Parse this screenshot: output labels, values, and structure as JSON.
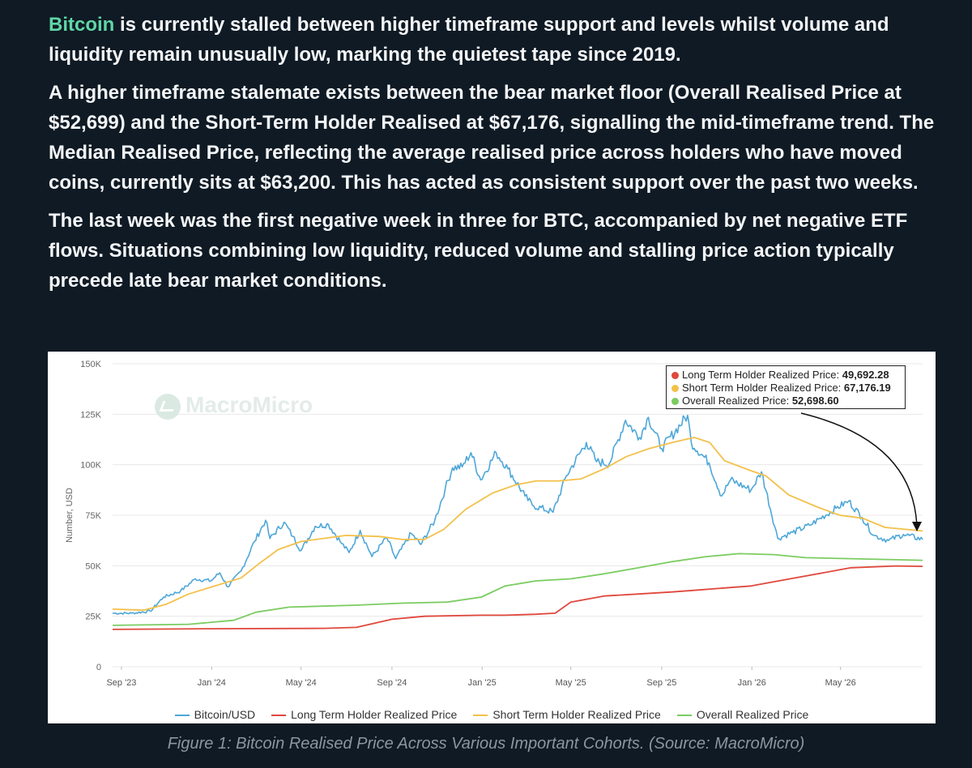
{
  "article": {
    "p1_accent": "Bitcoin",
    "p1_rest": " is currently stalled between higher timeframe support and levels whilst volume and liquidity remain unusually low, marking the quietest tape since 2019.",
    "p2": "A higher timeframe stalemate exists between the bear market floor (Overall Realised Price at $52,699) and the Short-Term Holder Realised at $67,176, signalling the mid-timeframe trend. The Median Realised Price, reflecting the average realised price across holders who have moved coins, currently sits at $63,200. This has acted as consistent support over the past two weeks.",
    "p3": "The last week was the first negative week in three for BTC, accompanied by net negative ETF flows. Situations combining low liquidity, reduced volume and stalling price action typically precede late bear market conditions."
  },
  "caption": "Figure 1: Bitcoin Realised Price Across Various Important Cohorts. (Source: MacroMicro)",
  "logo_text": "MacroMicro",
  "colors": {
    "accent": "#5fd6a6",
    "btc": "#4ea7d8",
    "lth": "#e0483c",
    "sth": "#f3c04a",
    "overall": "#7bcc62"
  },
  "tooltip": [
    {
      "label": "Long Term Holder Realized Price:",
      "value": "49,692.28",
      "color": "#e0483c"
    },
    {
      "label": "Short Term Holder Realized Price:",
      "value": "67,176.19",
      "color": "#f3c04a"
    },
    {
      "label": "Overall Realized Price:",
      "value": "52,698.60",
      "color": "#7bcc62"
    }
  ],
  "chart_data": {
    "type": "line",
    "ylabel": "Number, USD",
    "ylim": [
      0,
      150000
    ],
    "yticks": [
      0,
      25000,
      50000,
      75000,
      100000,
      125000,
      150000
    ],
    "ytick_labels": [
      "0",
      "25K",
      "50K",
      "75K",
      "100K",
      "125K",
      "150K"
    ],
    "xlim": [
      "2023-08-20",
      "2026-08-20"
    ],
    "xticks": [
      "2023-09-01",
      "2024-01-01",
      "2024-05-01",
      "2024-09-01",
      "2025-01-01",
      "2025-05-01",
      "2025-09-01",
      "2026-01-01",
      "2026-05-01"
    ],
    "xtick_labels": [
      "Sep '23",
      "Jan '24",
      "May '24",
      "Sep '24",
      "Jan '25",
      "May '25",
      "Sep '25",
      "Jan '26",
      "May '26"
    ],
    "grid": "horizontal",
    "legend": "bottom",
    "series": [
      {
        "name": "Bitcoin/USD",
        "color": "#4ea7d8",
        "points": [
          [
            "2023-08-20",
            26500
          ],
          [
            "2023-09-15",
            26500
          ],
          [
            "2023-10-10",
            27500
          ],
          [
            "2023-10-28",
            34500
          ],
          [
            "2023-11-20",
            37500
          ],
          [
            "2023-12-10",
            43500
          ],
          [
            "2023-12-31",
            42500
          ],
          [
            "2024-01-12",
            46500
          ],
          [
            "2024-01-23",
            39500
          ],
          [
            "2024-02-10",
            47500
          ],
          [
            "2024-02-28",
            62000
          ],
          [
            "2024-03-14",
            72500
          ],
          [
            "2024-03-20",
            63500
          ],
          [
            "2024-04-08",
            71500
          ],
          [
            "2024-04-20",
            64500
          ],
          [
            "2024-05-01",
            57500
          ],
          [
            "2024-05-20",
            69500
          ],
          [
            "2024-06-07",
            70500
          ],
          [
            "2024-06-25",
            61000
          ],
          [
            "2024-07-05",
            56500
          ],
          [
            "2024-07-20",
            67500
          ],
          [
            "2024-08-05",
            54500
          ],
          [
            "2024-08-25",
            64000
          ],
          [
            "2024-09-06",
            53500
          ],
          [
            "2024-09-27",
            66000
          ],
          [
            "2024-10-10",
            60500
          ],
          [
            "2024-10-29",
            72500
          ],
          [
            "2024-11-12",
            88000
          ],
          [
            "2024-11-22",
            98500
          ],
          [
            "2024-12-05",
            99000
          ],
          [
            "2024-12-17",
            106000
          ],
          [
            "2024-12-30",
            92500
          ],
          [
            "2025-01-20",
            106000
          ],
          [
            "2025-02-05",
            98000
          ],
          [
            "2025-02-28",
            84500
          ],
          [
            "2025-03-10",
            80000
          ],
          [
            "2025-04-07",
            76500
          ],
          [
            "2025-04-25",
            94500
          ],
          [
            "2025-05-22",
            111000
          ],
          [
            "2025-06-05",
            101500
          ],
          [
            "2025-06-22",
            100500
          ],
          [
            "2025-07-14",
            122000
          ],
          [
            "2025-08-02",
            113500
          ],
          [
            "2025-08-14",
            123500
          ],
          [
            "2025-09-01",
            108000
          ],
          [
            "2025-10-06",
            124500
          ],
          [
            "2025-10-11",
            111000
          ],
          [
            "2025-11-04",
            101000
          ],
          [
            "2025-11-21",
            84500
          ],
          [
            "2025-12-03",
            92500
          ],
          [
            "2025-12-31",
            87500
          ],
          [
            "2026-01-14",
            96500
          ],
          [
            "2026-02-05",
            63500
          ],
          [
            "2026-02-25",
            66500
          ],
          [
            "2026-03-20",
            70000
          ],
          [
            "2026-04-25",
            78500
          ],
          [
            "2026-05-12",
            82000
          ],
          [
            "2026-05-30",
            74000
          ],
          [
            "2026-06-15",
            65000
          ],
          [
            "2026-07-05",
            62500
          ],
          [
            "2026-07-25",
            65500
          ],
          [
            "2026-08-20",
            63000
          ]
        ]
      },
      {
        "name": "Long Term Holder Realized Price",
        "color": "#e0483c",
        "points": [
          [
            "2023-08-20",
            18500
          ],
          [
            "2023-12-31",
            18800
          ],
          [
            "2024-06-01",
            19000
          ],
          [
            "2024-07-15",
            19500
          ],
          [
            "2024-09-01",
            23500
          ],
          [
            "2024-10-15",
            25000
          ],
          [
            "2024-12-31",
            25500
          ],
          [
            "2025-02-01",
            25500
          ],
          [
            "2025-03-15",
            26000
          ],
          [
            "2025-04-10",
            26500
          ],
          [
            "2025-05-01",
            32000
          ],
          [
            "2025-06-15",
            35000
          ],
          [
            "2025-08-01",
            36000
          ],
          [
            "2025-09-15",
            37000
          ],
          [
            "2025-10-20",
            38000
          ],
          [
            "2025-12-31",
            40000
          ],
          [
            "2026-03-01",
            44000
          ],
          [
            "2026-05-15",
            49000
          ],
          [
            "2026-07-15",
            49900
          ],
          [
            "2026-08-20",
            49700
          ]
        ]
      },
      {
        "name": "Short Term Holder Realized Price",
        "color": "#f3c04a",
        "points": [
          [
            "2023-08-20",
            28500
          ],
          [
            "2023-10-01",
            28000
          ],
          [
            "2023-11-01",
            31000
          ],
          [
            "2023-12-01",
            36000
          ],
          [
            "2024-01-01",
            39500
          ],
          [
            "2024-02-10",
            44000
          ],
          [
            "2024-03-05",
            51000
          ],
          [
            "2024-03-31",
            58000
          ],
          [
            "2024-05-01",
            62000
          ],
          [
            "2024-07-01",
            65000
          ],
          [
            "2024-08-15",
            64500
          ],
          [
            "2024-09-15",
            63000
          ],
          [
            "2024-10-15",
            63000
          ],
          [
            "2024-11-10",
            68000
          ],
          [
            "2024-12-10",
            78000
          ],
          [
            "2025-01-15",
            86000
          ],
          [
            "2025-02-15",
            90000
          ],
          [
            "2025-03-15",
            92000
          ],
          [
            "2025-04-15",
            92000
          ],
          [
            "2025-05-15",
            93000
          ],
          [
            "2025-06-15",
            98000
          ],
          [
            "2025-07-15",
            104000
          ],
          [
            "2025-08-15",
            108000
          ],
          [
            "2025-09-15",
            111000
          ],
          [
            "2025-10-15",
            113500
          ],
          [
            "2025-11-05",
            111000
          ],
          [
            "2025-11-25",
            102000
          ],
          [
            "2025-12-31",
            97000
          ],
          [
            "2026-01-20",
            94500
          ],
          [
            "2026-02-20",
            85000
          ],
          [
            "2026-03-31",
            79000
          ],
          [
            "2026-04-30",
            75000
          ],
          [
            "2026-05-31",
            73500
          ],
          [
            "2026-06-30",
            69000
          ],
          [
            "2026-08-20",
            67200
          ]
        ]
      },
      {
        "name": "Overall Realized Price",
        "color": "#7bcc62",
        "points": [
          [
            "2023-08-20",
            20500
          ],
          [
            "2023-12-01",
            21000
          ],
          [
            "2024-01-31",
            23000
          ],
          [
            "2024-03-01",
            27000
          ],
          [
            "2024-04-15",
            29500
          ],
          [
            "2024-07-15",
            30500
          ],
          [
            "2024-09-15",
            31500
          ],
          [
            "2024-11-15",
            32000
          ],
          [
            "2024-12-31",
            34500
          ],
          [
            "2025-02-01",
            40000
          ],
          [
            "2025-03-15",
            42500
          ],
          [
            "2025-05-01",
            43500
          ],
          [
            "2025-06-15",
            46000
          ],
          [
            "2025-08-01",
            49000
          ],
          [
            "2025-09-15",
            52000
          ],
          [
            "2025-10-31",
            54500
          ],
          [
            "2025-12-15",
            56000
          ],
          [
            "2026-01-31",
            55500
          ],
          [
            "2026-03-15",
            54000
          ],
          [
            "2026-05-15",
            53500
          ],
          [
            "2026-08-20",
            52700
          ]
        ]
      }
    ]
  }
}
